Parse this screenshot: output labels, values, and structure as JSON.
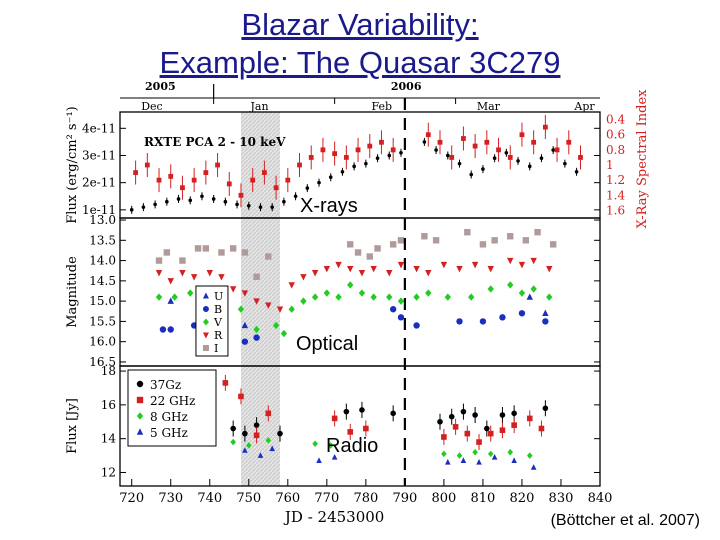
{
  "slide": {
    "title_line1": "Blazar Variability:",
    "title_line2": "Example: The Quasar  3C279",
    "credit": "(Böttcher et al. 2007)"
  },
  "colors": {
    "title": "#1a1a8c",
    "xray_flux": "#000000",
    "xray_index": "#d42020",
    "U": "#1a2fbf",
    "B": "#1a2fbf",
    "V": "#22cc22",
    "R": "#d42020",
    "I": "#b09a9a",
    "radio_37": "#000000",
    "radio_22": "#d42020",
    "radio_8": "#22cc22",
    "radio_5": "#1a2fbf",
    "shade": "#d9d9d9"
  },
  "chart_data": {
    "type": "scatter",
    "x_axis": {
      "label": "JD - 2453000",
      "range": [
        717,
        840
      ],
      "ticks": [
        720,
        730,
        740,
        750,
        760,
        770,
        780,
        790,
        800,
        810,
        820,
        830,
        840
      ]
    },
    "top_axis": {
      "years": [
        {
          "label": "2005",
          "x": 727
        },
        {
          "label": "2006",
          "x": 790
        }
      ],
      "months": [
        {
          "label": "Dec",
          "x": 725
        },
        {
          "label": "Jan",
          "x": 753
        },
        {
          "label": "Feb",
          "x": 784
        },
        {
          "label": "Mar",
          "x": 811
        },
        {
          "label": "Apr",
          "x": 836
        }
      ],
      "month_boundaries": [
        741,
        772,
        803
      ]
    },
    "shaded_region": [
      748,
      758
    ],
    "dashed_line_x": 790,
    "panels": [
      {
        "id": "xray",
        "ylabel": "Flux (erg/cm² s⁻¹)",
        "y_ticks": [
          "1e-11",
          "2e-11",
          "3e-11",
          "4e-11"
        ],
        "y_tick_values": [
          1,
          2,
          3,
          4
        ],
        "ylim": [
          0.7,
          4.6
        ],
        "right_label": "X-Ray Spectral Index",
        "right_ticks": [
          "0.4",
          "0.6",
          "0.8",
          "1",
          "1.2",
          "1.4",
          "1.6"
        ],
        "right_tick_values": [
          0.4,
          0.6,
          0.8,
          1.0,
          1.2,
          1.4,
          1.6
        ],
        "right_lim": [
          0.3,
          1.7
        ],
        "annotation": "RXTE PCA 2 - 10 keV",
        "overlay_label": "X-rays",
        "series": [
          {
            "name": "flux",
            "axis": "left",
            "marker": "dot",
            "x": [
              720,
              723,
              726,
              729,
              732,
              735,
              738,
              741,
              744,
              747,
              750,
              753,
              756,
              759,
              762,
              765,
              768,
              771,
              774,
              777,
              780,
              783,
              786,
              789,
              795,
              798,
              801,
              804,
              807,
              810,
              813,
              816,
              819,
              822,
              825,
              828,
              831,
              834
            ],
            "y": [
              1.0,
              1.1,
              1.2,
              1.3,
              1.4,
              1.35,
              1.5,
              1.4,
              1.3,
              1.2,
              1.15,
              1.1,
              1.1,
              1.3,
              1.5,
              1.8,
              2.0,
              2.2,
              2.4,
              2.6,
              2.7,
              2.9,
              3.0,
              3.1,
              3.5,
              3.2,
              3.0,
              2.7,
              2.3,
              2.5,
              2.9,
              3.1,
              2.8,
              2.6,
              2.9,
              3.2,
              2.7,
              2.4
            ]
          },
          {
            "name": "spectral index",
            "axis": "right",
            "marker": "square",
            "x": [
              721,
              724,
              727,
              730,
              733,
              736,
              739,
              742,
              745,
              748,
              751,
              754,
              757,
              760,
              763,
              766,
              769,
              772,
              775,
              778,
              781,
              784,
              787,
              796,
              799,
              802,
              805,
              808,
              811,
              814,
              817,
              820,
              823,
              826,
              829,
              832,
              835
            ],
            "y": [
              1.1,
              1.0,
              1.2,
              1.15,
              1.3,
              1.2,
              1.1,
              1.0,
              1.25,
              1.4,
              1.2,
              1.1,
              1.3,
              1.2,
              1.0,
              0.9,
              0.8,
              0.85,
              0.9,
              0.8,
              0.75,
              0.7,
              0.8,
              0.6,
              0.7,
              0.9,
              0.65,
              0.75,
              0.7,
              0.8,
              0.9,
              0.6,
              0.7,
              0.5,
              0.8,
              0.7,
              0.9
            ]
          }
        ]
      },
      {
        "id": "optical",
        "ylabel": "Magnitude",
        "inverted": true,
        "y_ticks": [
          "13.0",
          "13.5",
          "14.0",
          "14.5",
          "15.0",
          "15.5",
          "16.0",
          "16.5"
        ],
        "y_tick_values": [
          13.0,
          13.5,
          14.0,
          14.5,
          15.0,
          15.5,
          16.0,
          16.5
        ],
        "ylim": [
          12.95,
          16.6
        ],
        "overlay_label": "Optical",
        "legend_position": "inside-left",
        "series": [
          {
            "name": "U",
            "marker": "triangle-up",
            "x": [
              730,
              749,
              822,
              826
            ],
            "y": [
              15.0,
              15.6,
              14.9,
              15.3
            ]
          },
          {
            "name": "B",
            "marker": "circle",
            "x": [
              728,
              730,
              736,
              749,
              752,
              787,
              789,
              793,
              804,
              810,
              815,
              820,
              826
            ],
            "y": [
              15.7,
              15.7,
              15.6,
              16.0,
              15.9,
              15.2,
              15.4,
              15.6,
              15.5,
              15.5,
              15.4,
              15.3,
              15.5
            ]
          },
          {
            "name": "V",
            "marker": "diamond",
            "x": [
              727,
              731,
              735,
              739,
              741,
              744,
              748,
              752,
              757,
              759,
              761,
              764,
              767,
              770,
              773,
              776,
              779,
              782,
              786,
              789,
              793,
              796,
              801,
              807,
              812,
              817,
              820,
              823,
              827
            ],
            "y": [
              14.9,
              14.9,
              14.8,
              14.8,
              14.7,
              14.9,
              15.2,
              15.7,
              15.6,
              15.8,
              15.2,
              15.0,
              14.9,
              14.8,
              14.9,
              14.6,
              14.8,
              14.9,
              14.9,
              15.0,
              14.9,
              14.8,
              14.9,
              14.9,
              14.7,
              14.6,
              14.8,
              14.7,
              14.9
            ]
          },
          {
            "name": "R",
            "marker": "triangle-down",
            "x": [
              727,
              730,
              733,
              736,
              740,
              743,
              746,
              749,
              752,
              755,
              758,
              761,
              764,
              767,
              770,
              773,
              776,
              779,
              782,
              786,
              789,
              793,
              796,
              800,
              804,
              808,
              812,
              817,
              820,
              823,
              827
            ],
            "y": [
              14.3,
              14.5,
              14.3,
              14.4,
              14.3,
              14.4,
              14.7,
              14.8,
              15.0,
              15.1,
              15.2,
              14.6,
              14.4,
              14.3,
              14.2,
              14.1,
              14.2,
              14.3,
              14.2,
              14.3,
              14.1,
              14.2,
              14.3,
              14.1,
              14.2,
              14.1,
              14.2,
              14.0,
              14.1,
              14.0,
              14.2
            ]
          },
          {
            "name": "I",
            "marker": "square",
            "x": [
              727,
              729,
              733,
              737,
              739,
              743,
              746,
              749,
              752,
              755,
              776,
              778,
              781,
              783,
              787,
              789,
              795,
              798,
              806,
              810,
              813,
              817,
              821,
              824,
              828
            ],
            "y": [
              14.0,
              13.8,
              14.0,
              13.7,
              13.7,
              13.8,
              13.7,
              13.8,
              14.4,
              13.9,
              13.6,
              13.8,
              13.9,
              13.7,
              13.6,
              13.5,
              13.4,
              13.5,
              13.3,
              13.6,
              13.5,
              13.4,
              13.5,
              13.3,
              13.6
            ]
          }
        ]
      },
      {
        "id": "radio",
        "ylabel": "Flux [Jy]",
        "y_ticks": [
          "12",
          "14",
          "16",
          "18"
        ],
        "y_tick_values": [
          12,
          14,
          16,
          18
        ],
        "ylim": [
          11.2,
          18.3
        ],
        "overlay_label": "Radio",
        "legend_position": "top-left",
        "series": [
          {
            "name": "37Gz",
            "marker": "dot",
            "x": [
              746,
              749,
              752,
              758,
              775,
              779,
              787,
              799,
              802,
              805,
              808,
              811,
              815,
              818,
              826
            ],
            "y": [
              14.6,
              14.3,
              14.8,
              14.3,
              15.6,
              15.7,
              15.5,
              15.0,
              15.3,
              15.6,
              15.4,
              14.6,
              15.4,
              15.5,
              15.8
            ]
          },
          {
            "name": "22 GHz",
            "marker": "square",
            "x": [
              744,
              748,
              752,
              755,
              772,
              776,
              780,
              800,
              803,
              806,
              809,
              812,
              815,
              818,
              822,
              825
            ],
            "y": [
              17.3,
              16.5,
              14.2,
              15.5,
              15.2,
              14.4,
              14.6,
              14.1,
              14.7,
              14.3,
              13.8,
              14.3,
              14.5,
              14.8,
              15.2,
              14.6
            ]
          },
          {
            "name": "8 GHz",
            "marker": "diamond",
            "x": [
              740,
              746,
              750,
              755,
              767,
              771,
              800,
              804,
              808,
              812,
              817,
              822
            ],
            "y": [
              13.9,
              13.8,
              13.6,
              13.9,
              13.7,
              13.6,
              13.1,
              13.0,
              13.2,
              13.1,
              13.2,
              13.0
            ]
          },
          {
            "name": "5 GHz",
            "marker": "triangle-up",
            "x": [
              749,
              753,
              756,
              768,
              772,
              801,
              805,
              809,
              813,
              818,
              823
            ],
            "y": [
              13.3,
              13.0,
              13.4,
              12.7,
              12.9,
              12.6,
              12.7,
              12.6,
              12.9,
              12.7,
              12.3
            ]
          }
        ]
      }
    ]
  }
}
